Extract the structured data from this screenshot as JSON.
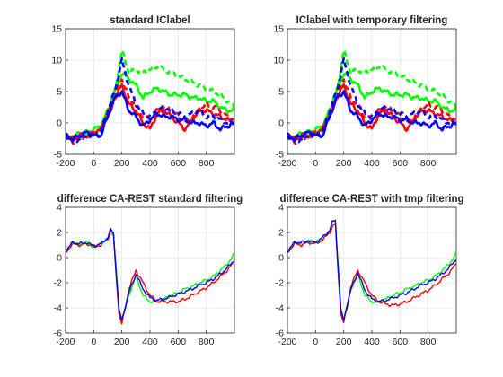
{
  "chart_data": [
    {
      "type": "line",
      "title": "standard IClabel",
      "xlim": [
        -200,
        1000
      ],
      "ylim": [
        -5,
        15
      ],
      "xticks": [
        -200,
        0,
        200,
        400,
        600,
        800
      ],
      "yticks": [
        -5,
        0,
        5,
        10,
        15
      ],
      "grid": true,
      "series": [
        {
          "color": "#00ff00",
          "style": "solid",
          "x": [
            -200,
            -150,
            -100,
            -50,
            0,
            50,
            100,
            150,
            200,
            250,
            300,
            350,
            400,
            450,
            500,
            550,
            600,
            650,
            700,
            750,
            800,
            850,
            900,
            950,
            1000
          ],
          "y": [
            -2,
            -2.5,
            -1.5,
            -1.5,
            -1,
            -0.5,
            2,
            5,
            8,
            7,
            6,
            4,
            5,
            5.5,
            5,
            4.5,
            4.5,
            4.5,
            4,
            4,
            3.5,
            3.5,
            2.5,
            2,
            2
          ]
        },
        {
          "color": "#00ff00",
          "style": "dashed",
          "x": [
            -200,
            -150,
            -100,
            -50,
            0,
            50,
            100,
            150,
            200,
            250,
            300,
            350,
            400,
            450,
            500,
            550,
            600,
            650,
            700,
            750,
            800,
            850,
            900,
            950,
            1000
          ],
          "y": [
            -2,
            -2.5,
            -2,
            -2,
            -1.5,
            -1,
            2,
            5,
            11.5,
            8,
            8.5,
            8,
            8.5,
            9,
            8.5,
            8,
            7.5,
            7,
            6.5,
            6,
            5.5,
            5,
            4.5,
            3.5,
            2.5
          ]
        },
        {
          "color": "#ff0000",
          "style": "solid",
          "x": [
            -200,
            -150,
            -100,
            -50,
            0,
            50,
            100,
            150,
            200,
            250,
            300,
            350,
            400,
            450,
            500,
            550,
            600,
            650,
            700,
            750,
            800,
            850,
            900,
            950,
            1000
          ],
          "y": [
            -2,
            -2.5,
            -2,
            -2,
            -1.5,
            -1,
            1.5,
            4,
            6,
            3,
            2,
            0,
            -1,
            1.5,
            2,
            1,
            0,
            -1,
            0.5,
            2,
            2,
            1.5,
            1,
            0.5,
            0
          ]
        },
        {
          "color": "#ff0000",
          "style": "dashed",
          "x": [
            -200,
            -150,
            -100,
            -50,
            0,
            50,
            100,
            150,
            200,
            250,
            300,
            350,
            400,
            450,
            500,
            550,
            600,
            650,
            700,
            750,
            800,
            850,
            900,
            950,
            1000
          ],
          "y": [
            -2,
            -3,
            -2.5,
            -2,
            -2,
            -1,
            1.5,
            4,
            7,
            4,
            3,
            1,
            0.5,
            2,
            2.5,
            2,
            1,
            0,
            1,
            2,
            3,
            2.5,
            2,
            1,
            0.5
          ]
        },
        {
          "color": "#0000ff",
          "style": "solid",
          "x": [
            -200,
            -150,
            -100,
            -50,
            0,
            50,
            100,
            150,
            200,
            250,
            300,
            350,
            400,
            450,
            500,
            550,
            600,
            650,
            700,
            750,
            800,
            850,
            900,
            950,
            1000
          ],
          "y": [
            -2,
            -2.5,
            -2,
            -1.5,
            -2,
            -2,
            1,
            4,
            5,
            2,
            1,
            -0.5,
            0.5,
            1.5,
            1,
            1,
            0.5,
            0.5,
            0,
            0,
            -0.5,
            0,
            -1,
            -0.5,
            0
          ]
        },
        {
          "color": "#0000ff",
          "style": "dashed",
          "x": [
            -200,
            -150,
            -100,
            -50,
            0,
            50,
            100,
            150,
            200,
            250,
            300,
            350,
            400,
            450,
            500,
            550,
            600,
            650,
            700,
            750,
            800,
            850,
            900,
            950,
            1000
          ],
          "y": [
            -2,
            -3,
            -2.5,
            -2,
            -2,
            -1.5,
            2,
            5,
            10,
            6,
            3,
            1.5,
            1,
            2,
            2.5,
            2,
            1.5,
            1,
            1.5,
            2,
            1,
            1,
            0.5,
            0,
            0
          ]
        }
      ]
    },
    {
      "type": "line",
      "title": "IClabel with temporary filtering",
      "xlim": [
        -200,
        1000
      ],
      "ylim": [
        -5,
        15
      ],
      "xticks": [
        -200,
        0,
        200,
        400,
        600,
        800
      ],
      "yticks": [
        -5,
        0,
        5,
        10,
        15
      ],
      "grid": true,
      "series": [
        {
          "color": "#00ff00",
          "style": "solid",
          "x": [
            -200,
            -150,
            -100,
            -50,
            0,
            50,
            100,
            150,
            200,
            250,
            300,
            350,
            400,
            450,
            500,
            550,
            600,
            650,
            700,
            750,
            800,
            850,
            900,
            950,
            1000
          ],
          "y": [
            -2,
            -2.5,
            -1.5,
            -1.5,
            -1,
            -0.5,
            2,
            5,
            8,
            7,
            6,
            4,
            5,
            5.5,
            5,
            4.5,
            4.5,
            4.5,
            4,
            4,
            3.5,
            3.5,
            2.5,
            2,
            2
          ]
        },
        {
          "color": "#00ff00",
          "style": "dashed",
          "x": [
            -200,
            -150,
            -100,
            -50,
            0,
            50,
            100,
            150,
            200,
            250,
            300,
            350,
            400,
            450,
            500,
            550,
            600,
            650,
            700,
            750,
            800,
            850,
            900,
            950,
            1000
          ],
          "y": [
            -2,
            -2.5,
            -2,
            -2,
            -1.5,
            -1,
            2,
            5,
            11.5,
            8,
            8.5,
            8,
            8.5,
            9,
            8.5,
            8,
            7.5,
            7,
            6.5,
            6,
            5.5,
            5,
            4.5,
            3.5,
            2.5
          ]
        },
        {
          "color": "#ff0000",
          "style": "solid",
          "x": [
            -200,
            -150,
            -100,
            -50,
            0,
            50,
            100,
            150,
            200,
            250,
            300,
            350,
            400,
            450,
            500,
            550,
            600,
            650,
            700,
            750,
            800,
            850,
            900,
            950,
            1000
          ],
          "y": [
            -2,
            -2.5,
            -2,
            -2,
            -1.5,
            -1,
            1.5,
            4,
            6,
            3,
            2,
            0,
            -1,
            1.5,
            2,
            1,
            0,
            -1,
            0.5,
            2,
            2,
            1.5,
            1,
            0.5,
            0
          ]
        },
        {
          "color": "#ff0000",
          "style": "dashed",
          "x": [
            -200,
            -150,
            -100,
            -50,
            0,
            50,
            100,
            150,
            200,
            250,
            300,
            350,
            400,
            450,
            500,
            550,
            600,
            650,
            700,
            750,
            800,
            850,
            900,
            950,
            1000
          ],
          "y": [
            -2,
            -3,
            -2.5,
            -2,
            -2,
            -1,
            1.5,
            4,
            7,
            4,
            3,
            1,
            0.5,
            2,
            2.5,
            2,
            1,
            0,
            1,
            2,
            3,
            2.5,
            2,
            1,
            0.5
          ]
        },
        {
          "color": "#0000ff",
          "style": "solid",
          "x": [
            -200,
            -150,
            -100,
            -50,
            0,
            50,
            100,
            150,
            200,
            250,
            300,
            350,
            400,
            450,
            500,
            550,
            600,
            650,
            700,
            750,
            800,
            850,
            900,
            950,
            1000
          ],
          "y": [
            -2,
            -2.5,
            -2,
            -1.5,
            -2,
            -2,
            1,
            4,
            5,
            2,
            1,
            -0.5,
            0.5,
            1.5,
            1,
            1,
            0.5,
            0.5,
            0,
            0,
            -0.5,
            0,
            -1,
            -0.5,
            0
          ]
        },
        {
          "color": "#0000ff",
          "style": "dashed",
          "x": [
            -200,
            -150,
            -100,
            -50,
            0,
            50,
            100,
            150,
            200,
            250,
            300,
            350,
            400,
            450,
            500,
            550,
            600,
            650,
            700,
            750,
            800,
            850,
            900,
            950,
            1000
          ],
          "y": [
            -2,
            -3,
            -2.5,
            -2,
            -2,
            -1.5,
            2,
            5,
            10,
            6,
            3,
            1.5,
            1,
            2,
            2.5,
            2,
            1.5,
            1,
            1.5,
            2,
            1,
            1,
            0.5,
            0,
            0
          ]
        }
      ]
    },
    {
      "type": "line",
      "title": "difference CA-REST standard filtering",
      "xlim": [
        -200,
        1000
      ],
      "ylim": [
        -6,
        4
      ],
      "xticks": [
        -200,
        0,
        200,
        400,
        600,
        800
      ],
      "yticks": [
        -6,
        -4,
        -2,
        0,
        2,
        4
      ],
      "grid": true,
      "series": [
        {
          "color": "#00ff00",
          "style": "solid",
          "x": [
            -200,
            -150,
            -100,
            -50,
            0,
            50,
            100,
            120,
            140,
            160,
            180,
            200,
            250,
            300,
            350,
            400,
            450,
            500,
            550,
            600,
            650,
            700,
            750,
            800,
            850,
            900,
            950,
            1000
          ],
          "y": [
            0.5,
            1.2,
            1,
            1.2,
            0.8,
            1,
            1.5,
            2,
            1.8,
            -1,
            -4,
            -5,
            -3,
            -1.5,
            -3,
            -3.5,
            -3.5,
            -3.3,
            -3,
            -2.8,
            -2.5,
            -2.3,
            -2,
            -1.8,
            -1.5,
            -1,
            -0.5,
            0.3
          ]
        },
        {
          "color": "#ff0000",
          "style": "solid",
          "x": [
            -200,
            -150,
            -100,
            -50,
            0,
            50,
            100,
            120,
            140,
            160,
            180,
            200,
            250,
            300,
            350,
            400,
            450,
            500,
            550,
            600,
            650,
            700,
            750,
            800,
            850,
            900,
            950,
            1000
          ],
          "y": [
            0.4,
            1.1,
            1,
            1.1,
            0.9,
            1,
            1.5,
            2.1,
            1.9,
            -1.5,
            -4.5,
            -5.3,
            -2.5,
            -1,
            -2,
            -3,
            -3.5,
            -3.5,
            -3.5,
            -3.5,
            -3.3,
            -3,
            -2.7,
            -2.4,
            -2,
            -1.5,
            -1,
            -0.3
          ]
        },
        {
          "color": "#0000ff",
          "style": "solid",
          "x": [
            -200,
            -150,
            -100,
            -50,
            0,
            50,
            100,
            120,
            140,
            160,
            180,
            200,
            250,
            300,
            350,
            400,
            450,
            500,
            550,
            600,
            650,
            700,
            750,
            800,
            850,
            900,
            950,
            1000
          ],
          "y": [
            0.5,
            1.2,
            1.1,
            1.2,
            0.9,
            1.1,
            1.6,
            2.2,
            2,
            -1.2,
            -4.2,
            -5,
            -2.8,
            -1.3,
            -2.5,
            -3.2,
            -3.4,
            -3.3,
            -3.1,
            -2.9,
            -2.7,
            -2.5,
            -2.2,
            -2,
            -1.7,
            -1.3,
            -0.8,
            -0.2
          ]
        }
      ]
    },
    {
      "type": "line",
      "title": "difference CA-REST with tmp filtering",
      "xlim": [
        -200,
        1000
      ],
      "ylim": [
        -6,
        4
      ],
      "xticks": [
        -200,
        0,
        200,
        400,
        600,
        800
      ],
      "yticks": [
        -6,
        -4,
        -2,
        0,
        2,
        4
      ],
      "grid": true,
      "series": [
        {
          "color": "#00ff00",
          "style": "solid",
          "x": [
            -200,
            -150,
            -100,
            -50,
            0,
            50,
            100,
            120,
            140,
            160,
            180,
            200,
            250,
            300,
            350,
            400,
            450,
            500,
            550,
            600,
            650,
            700,
            750,
            800,
            850,
            900,
            950,
            1000
          ],
          "y": [
            0.5,
            1.2,
            1.1,
            1.3,
            1.2,
            1.5,
            2,
            2.5,
            2.8,
            -0.5,
            -4,
            -5,
            -2.5,
            -1.3,
            -3,
            -3.5,
            -3.5,
            -3.3,
            -3,
            -2.8,
            -2.5,
            -2.3,
            -2,
            -1.8,
            -1.5,
            -1,
            -0.5,
            0.3
          ]
        },
        {
          "color": "#ff0000",
          "style": "solid",
          "x": [
            -200,
            -150,
            -100,
            -50,
            0,
            50,
            100,
            120,
            140,
            160,
            180,
            200,
            250,
            300,
            350,
            400,
            450,
            500,
            550,
            600,
            650,
            700,
            750,
            800,
            850,
            900,
            950,
            1000
          ],
          "y": [
            0.4,
            1.1,
            1,
            1.2,
            1.1,
            1.4,
            2,
            2.5,
            2.7,
            -1,
            -4.5,
            -5.2,
            -2.3,
            -1,
            -2,
            -3,
            -3.5,
            -3.7,
            -3.8,
            -3.7,
            -3.5,
            -3.2,
            -2.9,
            -2.6,
            -2.2,
            -1.7,
            -1.2,
            -0.5
          ]
        },
        {
          "color": "#0000ff",
          "style": "solid",
          "x": [
            -200,
            -150,
            -100,
            -50,
            0,
            50,
            100,
            120,
            140,
            160,
            180,
            200,
            250,
            300,
            350,
            400,
            450,
            500,
            550,
            600,
            650,
            700,
            750,
            800,
            850,
            900,
            950,
            1000
          ],
          "y": [
            0.5,
            1.2,
            1.2,
            1.3,
            1.2,
            1.6,
            2.2,
            2.8,
            3,
            -0.8,
            -4.2,
            -5,
            -2.6,
            -1.2,
            -2.6,
            -3.3,
            -3.5,
            -3.4,
            -3.2,
            -3,
            -2.8,
            -2.5,
            -2.2,
            -2,
            -1.7,
            -1.3,
            -0.8,
            -0.1
          ]
        }
      ]
    }
  ]
}
